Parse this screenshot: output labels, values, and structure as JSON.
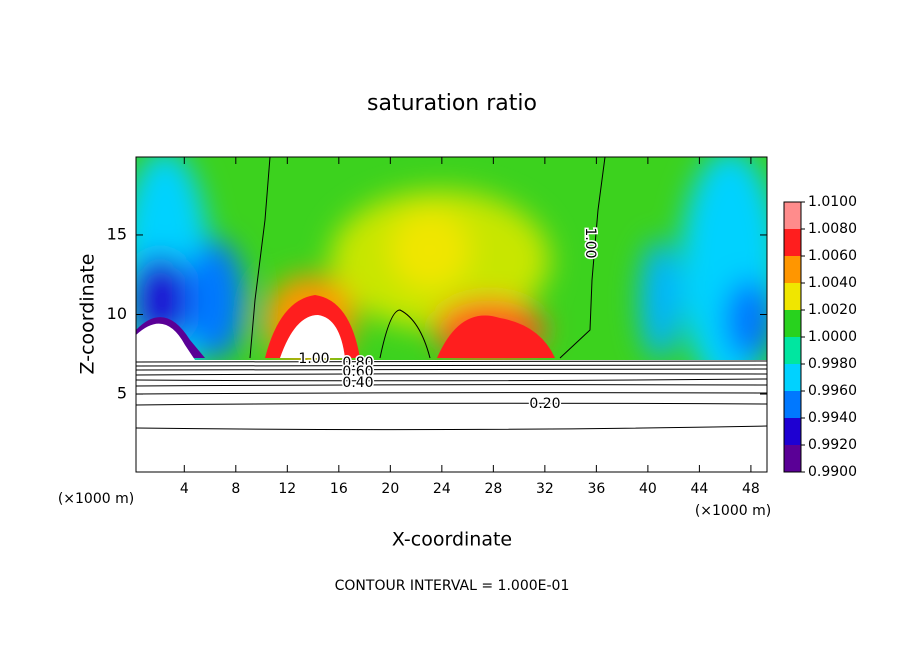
{
  "chart_data": {
    "type": "contour",
    "title": "saturation ratio",
    "x_label": "X-coordinate",
    "y_label": "Z-coordinate",
    "x_unit": "(×1000 m)",
    "y_unit": "(×1000 m)",
    "footnote": "CONTOUR INTERVAL = 1.000E-01",
    "xlim": [
      0.25,
      49.25
    ],
    "ylim": [
      0.1,
      19.9
    ],
    "xticks": [
      4,
      8,
      12,
      16,
      20,
      24,
      28,
      32,
      36,
      40,
      44,
      48
    ],
    "yticks": [
      5,
      10,
      15
    ],
    "contour_labels": [
      "1.00",
      "1.00",
      "0.80",
      "0.60",
      "0.40",
      "0.20"
    ],
    "colorbar": {
      "lim": [
        0.99,
        1.01
      ],
      "ticks": [
        {
          "value": 0.99,
          "label": "0.9900"
        },
        {
          "value": 0.992,
          "label": "0.9920"
        },
        {
          "value": 0.994,
          "label": "0.9940"
        },
        {
          "value": 0.996,
          "label": "0.9960"
        },
        {
          "value": 0.998,
          "label": "0.9980"
        },
        {
          "value": 1.0,
          "label": "1.0000"
        },
        {
          "value": 1.002,
          "label": "1.0020"
        },
        {
          "value": 1.004,
          "label": "1.0040"
        },
        {
          "value": 1.006,
          "label": "1.0060"
        },
        {
          "value": 1.008,
          "label": "1.0080"
        },
        {
          "value": 1.01,
          "label": "1.0100"
        }
      ],
      "colors": [
        "#5a0096",
        "#1e00d2",
        "#0078ff",
        "#00d2ff",
        "#00e6a0",
        "#28d21e",
        "#f0e600",
        "#ff9600",
        "#ff1e1e",
        "#ff8c8c"
      ]
    }
  }
}
